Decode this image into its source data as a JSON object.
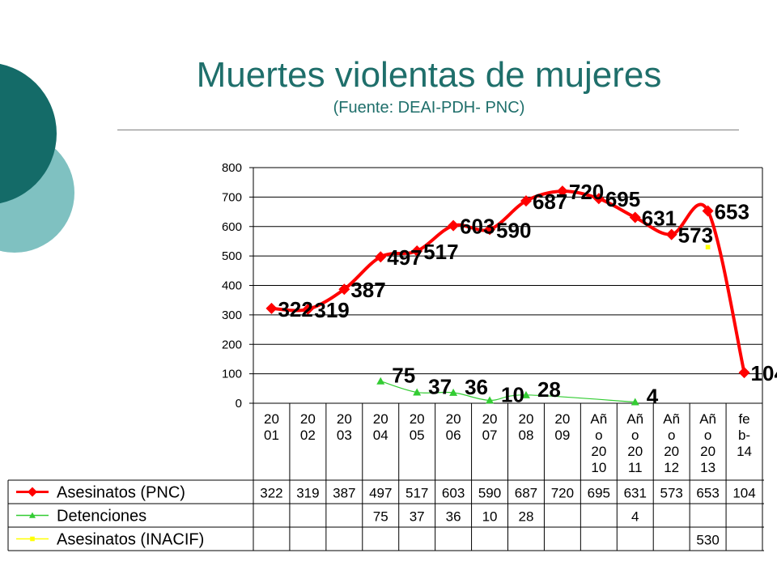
{
  "slide": {
    "title": "Muertes violentas de mujeres",
    "subtitle": "(Fuente: DEAI-PDH- PNC)",
    "colors": {
      "title": "#1f6f6b",
      "circle_dark": "#146b68",
      "circle_light": "#7fc1c1"
    }
  },
  "chart_data": {
    "type": "line",
    "categories": [
      [
        "20",
        "01"
      ],
      [
        "20",
        "02"
      ],
      [
        "20",
        "03"
      ],
      [
        "20",
        "04"
      ],
      [
        "20",
        "05"
      ],
      [
        "20",
        "06"
      ],
      [
        "20",
        "07"
      ],
      [
        "20",
        "08"
      ],
      [
        "20",
        "09"
      ],
      [
        "Añ",
        "o",
        "20",
        "10"
      ],
      [
        "Añ",
        "o",
        "20",
        "11"
      ],
      [
        "Añ",
        "o",
        "20",
        "12"
      ],
      [
        "Añ",
        "o",
        "20",
        "13"
      ],
      [
        "fe",
        "b-",
        "14"
      ]
    ],
    "series": [
      {
        "name": "Asesinatos (PNC)",
        "color": "#ff0000",
        "marker": "diamond",
        "values": [
          322,
          319,
          387,
          497,
          517,
          603,
          590,
          687,
          720,
          695,
          631,
          573,
          653,
          104
        ]
      },
      {
        "name": "Detenciones",
        "color": "#33cc33",
        "marker": "triangle",
        "values": [
          null,
          null,
          null,
          75,
          37,
          36,
          10,
          28,
          null,
          null,
          4,
          null,
          null,
          null
        ]
      },
      {
        "name": "Asesinatos (INACIF)",
        "color": "#ffff00",
        "marker": "square",
        "values": [
          null,
          null,
          null,
          null,
          null,
          null,
          null,
          null,
          null,
          null,
          null,
          null,
          530,
          null
        ]
      }
    ],
    "yticks": [
      0,
      100,
      200,
      300,
      400,
      500,
      600,
      700,
      800
    ],
    "ylim": [
      0,
      800
    ],
    "grid": true,
    "legend": "data-table"
  }
}
